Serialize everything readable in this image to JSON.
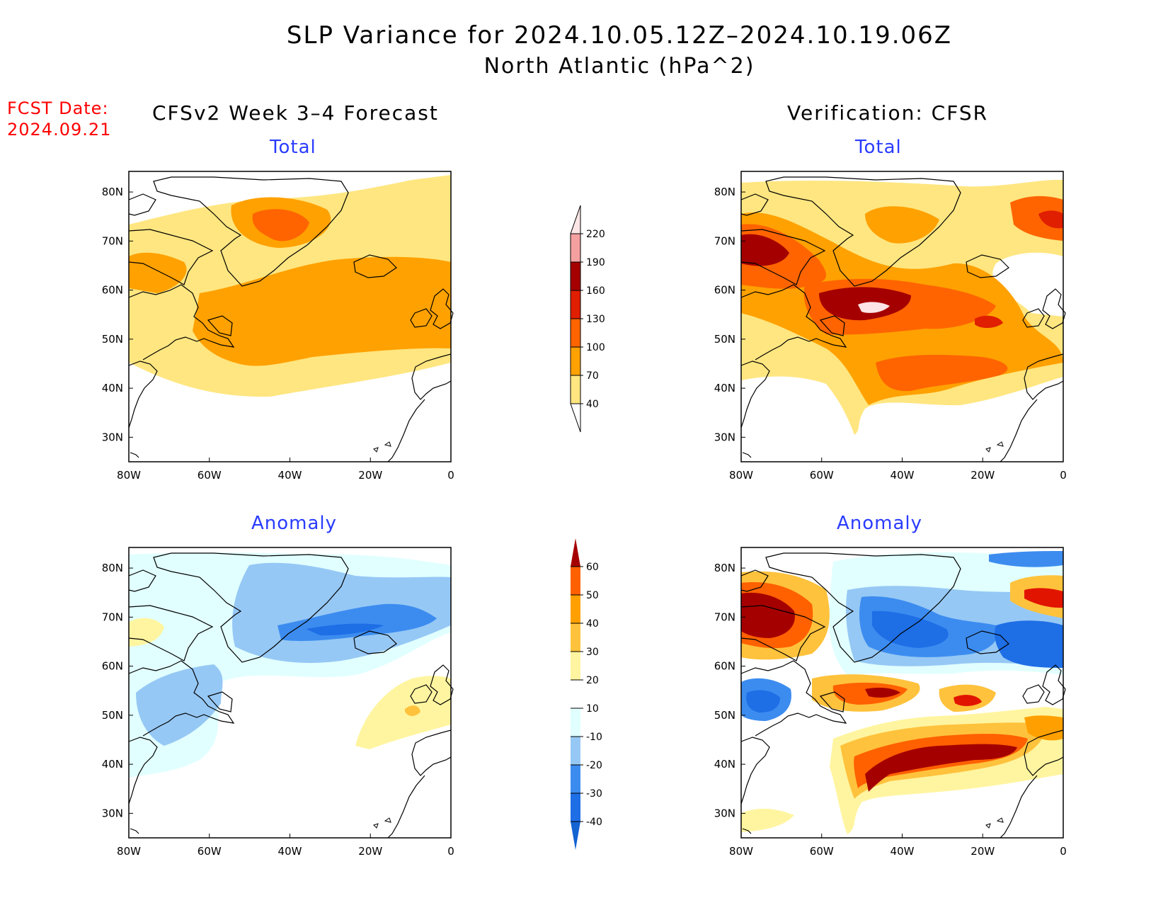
{
  "title": {
    "line1": "SLP Variance for 2024.10.05.12Z–2024.10.19.06Z",
    "line2": "North Atlantic (hPa^2)"
  },
  "forecast_date": {
    "label": "FCST Date:",
    "value": "2024.09.21"
  },
  "columns": {
    "left": "CFSv2 Week 3–4 Forecast",
    "right": "Verification: CFSR"
  },
  "panels": [
    {
      "id": "fcst-total",
      "title": "Total"
    },
    {
      "id": "verif-total",
      "title": "Total"
    },
    {
      "id": "fcst-anomaly",
      "title": "Anomaly"
    },
    {
      "id": "verif-anomaly",
      "title": "Anomaly"
    }
  ],
  "axes": {
    "lon_labels": [
      "80W",
      "60W",
      "40W",
      "20W",
      "0"
    ],
    "lat_labels": [
      "80N",
      "70N",
      "60N",
      "50N",
      "40N",
      "30N"
    ]
  },
  "colorbars": {
    "total": {
      "levels": [
        "40",
        "70",
        "100",
        "130",
        "160",
        "190",
        "220"
      ],
      "colors": [
        "#ffe680",
        "#ffa100",
        "#ff6400",
        "#e01e00",
        "#a50000",
        "#f5a0a0",
        "#fde5e5"
      ]
    },
    "anomaly": {
      "levels": [
        "-40",
        "-30",
        "-20",
        "-10",
        "10",
        "20",
        "30",
        "40",
        "50",
        "60"
      ],
      "colors": [
        "#1464d2",
        "#1e6ee6",
        "#3c8cf0",
        "#96c8f5",
        "#e1ffff",
        "#ffffff",
        "#fff5a0",
        "#ffc23c",
        "#ffa000",
        "#ff6000",
        "#e11400",
        "#a50000"
      ]
    }
  },
  "colors": {
    "title_text": "#000000",
    "forecast_date_text": "#ff0000",
    "panel_title_text": "#2a3cff"
  }
}
